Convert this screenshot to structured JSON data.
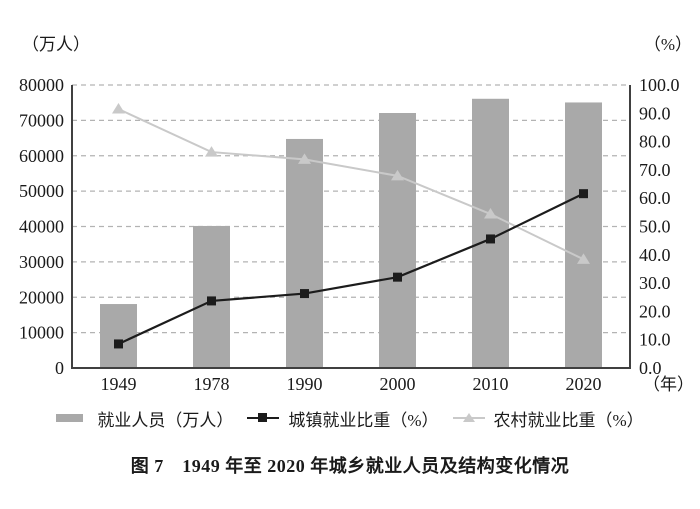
{
  "figure": {
    "caption": "图 7　1949 年至 2020 年城乡就业人员及结构变化情况",
    "left_unit_label": "（万人）",
    "right_unit_label": "（%）",
    "x_unit_label": "（年）"
  },
  "legend": {
    "position": "bottom",
    "items": [
      {
        "label": "就业人员（万人）",
        "marker": "bar-swatch"
      },
      {
        "label": "城镇就业比重（%）",
        "marker": "line-with-square"
      },
      {
        "label": "农村就业比重（%）",
        "marker": "line-with-triangle"
      }
    ]
  },
  "chart_data": {
    "type": "bar+line combo",
    "title": "图 7　1949 年至 2020 年城乡就业人员及结构变化情况",
    "categories": [
      "1949",
      "1978",
      "1990",
      "2000",
      "2010",
      "2020"
    ],
    "series": [
      {
        "name": "就业人员（万人）",
        "type": "bar",
        "axis": "left",
        "color": "#a9a9a9",
        "values": [
          18082,
          40152,
          64749,
          72085,
          76105,
          75064
        ]
      },
      {
        "name": "城镇就业比重（%）",
        "type": "line",
        "axis": "right",
        "marker": "square",
        "color": "#1c1c1c",
        "values": [
          8.5,
          23.7,
          26.3,
          32.1,
          45.6,
          61.6
        ]
      },
      {
        "name": "农村就业比重（%）",
        "type": "line",
        "axis": "right",
        "marker": "triangle",
        "color": "#c9c9c9",
        "values": [
          91.5,
          76.3,
          73.7,
          67.9,
          54.4,
          38.4
        ]
      }
    ],
    "left_axis": {
      "label": "（万人）",
      "min": 0,
      "max": 80000,
      "step": 10000,
      "ticks": [
        "0",
        "10000",
        "20000",
        "30000",
        "40000",
        "50000",
        "60000",
        "70000",
        "80000"
      ]
    },
    "right_axis": {
      "label": "（%）",
      "min": 0,
      "max": 100,
      "step": 10,
      "ticks": [
        "0.0",
        "10.0",
        "20.0",
        "30.0",
        "40.0",
        "50.0",
        "60.0",
        "70.0",
        "80.0",
        "90.0",
        "100.0"
      ]
    },
    "x_axis": {
      "label": "（年）"
    },
    "grid": "horizontal-dashed",
    "colors": {
      "grid": "#b3b3b3",
      "axis": "#404040",
      "text": "#1a1a1a",
      "background": "#ffffff"
    }
  }
}
